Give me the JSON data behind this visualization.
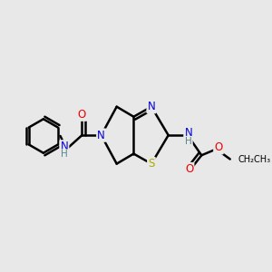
{
  "bg_color": "#e8e8e8",
  "atom_colors": {
    "C": "#000000",
    "N": "#0000dd",
    "O": "#ee0000",
    "S": "#aaaa00",
    "H": "#558888"
  },
  "bond_color": "#000000",
  "bond_width": 1.8,
  "figsize": [
    3.0,
    3.0
  ],
  "dpi": 100
}
